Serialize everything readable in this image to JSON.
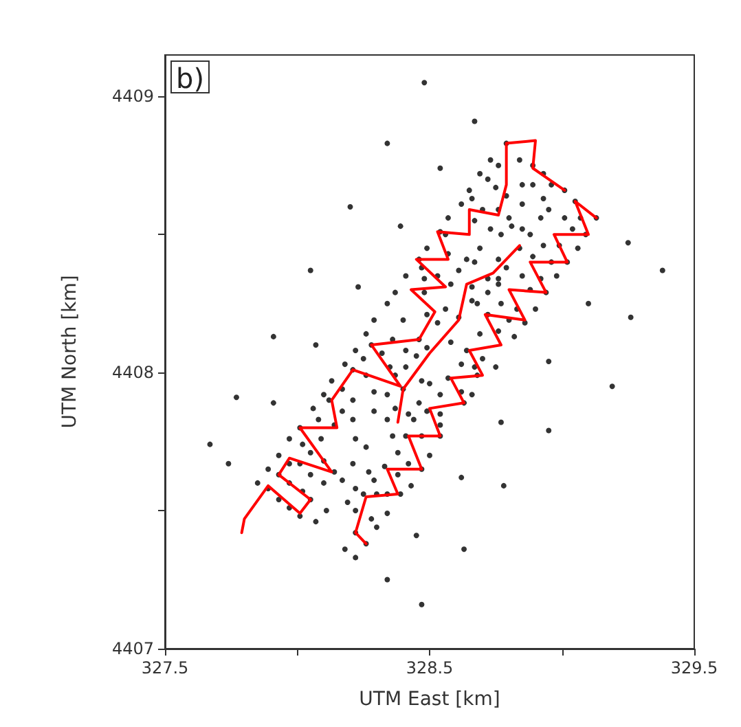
{
  "chart_data": {
    "type": "scatter",
    "xlabel": "UTM East [km]",
    "ylabel": "UTM North [km]",
    "annotations": [
      "b)"
    ],
    "xlim": [
      327.5,
      329.5
    ],
    "xticks": [
      327.5,
      {
        "value": 328,
        "label": null
      },
      328.5,
      {
        "value": 329,
        "label": null
      },
      329.5
    ],
    "ylim": [
      4407,
      4409.15
    ],
    "yticks": [
      4407,
      {
        "value": 4407.5,
        "label": null
      },
      4408,
      {
        "value": 4408.5,
        "label": null
      },
      4409
    ],
    "grid": false,
    "marker": "circle",
    "series": [
      {
        "color": "#000000",
        "x": [
          328.48,
          328.67,
          328.34,
          328.79,
          328.84,
          328.73,
          328.76,
          328.54,
          328.89,
          328.69,
          328.72,
          328.93,
          328.85,
          328.89,
          328.96,
          328.75,
          328.65,
          329.01,
          328.66,
          328.79,
          328.2,
          328.62,
          328.85,
          328.93,
          328.95,
          329.05,
          328.57,
          328.7,
          328.76,
          328.8,
          328.67,
          328.92,
          329.01,
          329.07,
          329.13,
          328.39,
          328.54,
          328.56,
          328.73,
          328.77,
          328.81,
          328.85,
          328.88,
          329.04,
          329.09,
          329.25,
          328.49,
          328.69,
          328.84,
          328.93,
          328.99,
          329.06,
          328.46,
          328.57,
          328.64,
          328.67,
          328.76,
          328.79,
          328.89,
          328.96,
          329.02,
          328.47,
          328.61,
          328.05,
          329.38,
          328.41,
          328.48,
          328.53,
          328.72,
          328.76,
          328.85,
          328.92,
          328.98,
          328.23,
          328.37,
          328.48,
          328.58,
          328.66,
          328.72,
          328.76,
          328.88,
          328.94,
          328.34,
          328.56,
          328.66,
          328.68,
          328.77,
          328.83,
          328.9,
          329.1,
          328.29,
          328.4,
          328.49,
          328.53,
          328.61,
          328.72,
          328.8,
          328.86,
          329.26,
          328.26,
          328.36,
          328.46,
          328.58,
          328.69,
          328.76,
          328.82,
          327.91,
          328.07,
          328.28,
          328.22,
          328.32,
          328.41,
          328.45,
          328.49,
          328.64,
          328.7,
          328.18,
          328.25,
          328.35,
          328.41,
          328.62,
          328.67,
          328.75,
          328.95,
          328.21,
          328.13,
          328.26,
          328.37,
          328.47,
          328.5,
          328.57,
          328.68,
          329.19,
          328.1,
          328.17,
          328.29,
          328.34,
          328.4,
          328.54,
          328.62,
          328.66,
          327.77,
          327.91,
          328.12,
          328.21,
          328.46,
          328.63,
          328.06,
          328.17,
          328.29,
          328.37,
          328.42,
          328.49,
          328.54,
          328.08,
          328.21,
          328.34,
          328.44,
          328.01,
          328.14,
          328.54,
          328.77,
          328.95,
          327.97,
          328.09,
          328.22,
          328.02,
          328.26,
          328.36,
          328.41,
          328.47,
          328.54,
          327.67,
          327.93,
          328.05,
          328.38,
          328.5,
          327.74,
          327.97,
          328.01,
          328.21,
          328.42,
          327.89,
          328.14,
          328.27,
          328.33,
          328.47,
          328.1,
          327.85,
          327.93,
          328.05,
          328.1,
          328.17,
          328.22,
          328.29,
          328.38,
          328.43,
          328.62,
          328.78,
          327.89,
          327.97,
          328.02,
          328.25,
          328.3,
          328.34,
          328.39,
          327.93,
          328.05,
          328.19,
          327.97,
          328.22,
          328.11,
          328.01,
          328.34,
          328.28,
          328.07,
          328.3,
          328.22,
          328.26,
          328.45,
          328.18,
          328.22,
          328.63,
          328.34,
          328.47
        ],
        "values": [
          4409.05,
          4408.91,
          4408.83,
          4408.83,
          4408.77,
          4408.77,
          4408.75,
          4408.74,
          4408.75,
          4408.72,
          4408.7,
          4408.72,
          4408.68,
          4408.68,
          4408.68,
          4408.67,
          4408.66,
          4408.66,
          4408.63,
          4408.64,
          4408.6,
          4408.61,
          4408.61,
          4408.63,
          4408.59,
          4408.62,
          4408.56,
          4408.59,
          4408.59,
          4408.56,
          4408.55,
          4408.56,
          4408.56,
          4408.56,
          4408.56,
          4408.53,
          4408.51,
          4408.5,
          4408.52,
          4408.5,
          4408.53,
          4408.52,
          4408.5,
          4408.52,
          4408.5,
          4408.47,
          4408.45,
          4408.45,
          4408.45,
          4408.46,
          4408.46,
          4408.45,
          4408.41,
          4408.43,
          4408.41,
          4408.4,
          4408.41,
          4408.38,
          4408.42,
          4408.4,
          4408.4,
          4408.38,
          4408.37,
          4408.37,
          4408.37,
          4408.35,
          4408.34,
          4408.35,
          4408.34,
          4408.34,
          4408.35,
          4408.34,
          4408.35,
          4408.31,
          4408.29,
          4408.29,
          4408.32,
          4408.31,
          4408.29,
          4408.32,
          4408.3,
          4408.29,
          4408.25,
          4408.23,
          4408.26,
          4408.25,
          4408.25,
          4408.23,
          4408.23,
          4408.25,
          4408.19,
          4408.19,
          4408.21,
          4408.18,
          4408.2,
          4408.21,
          4408.19,
          4408.18,
          4408.2,
          4408.14,
          4408.12,
          4408.12,
          4408.11,
          4408.14,
          4408.15,
          4408.13,
          4408.13,
          4408.1,
          4408.1,
          4408.08,
          4408.07,
          4408.08,
          4408.06,
          4408.09,
          4408.08,
          4408.05,
          4408.03,
          4408.05,
          4408.02,
          4408.02,
          4408.03,
          4408.02,
          4408.02,
          4408.04,
          4408.01,
          4407.97,
          4407.99,
          4407.99,
          4407.97,
          4407.96,
          4407.98,
          4407.99,
          4407.95,
          4407.92,
          4407.94,
          4407.93,
          4407.92,
          4407.94,
          4407.92,
          4407.93,
          4407.92,
          4407.91,
          4407.89,
          4407.9,
          4407.9,
          4407.89,
          4407.89,
          4407.87,
          4407.86,
          4407.86,
          4407.87,
          4407.85,
          4407.86,
          4407.85,
          4407.83,
          4407.83,
          4407.83,
          4407.83,
          4407.8,
          4407.81,
          4407.81,
          4407.82,
          4407.79,
          4407.76,
          4407.76,
          4407.76,
          4407.74,
          4407.73,
          4407.77,
          4407.77,
          4407.77,
          4407.77,
          4407.74,
          4407.7,
          4407.71,
          4407.71,
          4407.7,
          4407.67,
          4407.67,
          4407.67,
          4407.67,
          4407.67,
          4407.65,
          4407.64,
          4407.64,
          4407.66,
          4407.65,
          4407.68,
          4407.6,
          4407.63,
          4407.63,
          4407.6,
          4407.61,
          4407.58,
          4407.61,
          4407.63,
          4407.59,
          4407.62,
          4407.59,
          4407.58,
          4407.6,
          4407.57,
          4407.56,
          4407.56,
          4407.56,
          4407.56,
          4407.54,
          4407.54,
          4407.53,
          4407.51,
          4407.5,
          4407.5,
          4407.48,
          4407.49,
          4407.47,
          4407.46,
          4407.44,
          4407.42,
          4407.38,
          4407.41,
          4407.36,
          4407.33,
          4407.36,
          4407.25,
          4407.16
        ]
      },
      {
        "type": "line",
        "marker": "none",
        "color": "#ff0000",
        "x": [
          327.79,
          327.8,
          327.89,
          328.01,
          328.05,
          327.93,
          327.97,
          328.13,
          328.01,
          328.15,
          328.13,
          328.21,
          328.39,
          328.28,
          328.46,
          328.52,
          328.43,
          328.56,
          328.45,
          328.57,
          328.53,
          328.65,
          328.65,
          328.76,
          328.79,
          328.79,
          328.9,
          328.89,
          329.01
        ],
        "values": [
          4407.42,
          4407.47,
          4407.59,
          4407.49,
          4407.54,
          4407.63,
          4407.69,
          4407.64,
          4407.8,
          4407.8,
          4407.9,
          4408.01,
          4407.95,
          4408.1,
          4408.12,
          4408.22,
          4408.3,
          4408.31,
          4408.41,
          4408.41,
          4408.51,
          4408.5,
          4408.59,
          4408.57,
          4408.68,
          4408.83,
          4408.84,
          4408.74,
          4408.66
        ]
      },
      {
        "type": "line",
        "marker": "none",
        "color": "#ff0000",
        "x": [
          328.26,
          328.22,
          328.26,
          328.38,
          328.34,
          328.47,
          328.42,
          328.54,
          328.5,
          328.63,
          328.58,
          328.7,
          328.65,
          328.77,
          328.71,
          328.86,
          328.8,
          328.94,
          328.88,
          329.02,
          328.97,
          329.1,
          329.05,
          329.13
        ],
        "values": [
          4407.38,
          4407.42,
          4407.55,
          4407.56,
          4407.65,
          4407.65,
          4407.77,
          4407.77,
          4407.87,
          4407.89,
          4407.98,
          4407.99,
          4408.08,
          4408.1,
          4408.21,
          4408.19,
          4408.3,
          4408.29,
          4408.4,
          4408.4,
          4408.5,
          4408.5,
          4408.62,
          4408.56
        ]
      },
      {
        "type": "line",
        "marker": "none",
        "color": "#ff0000",
        "x": [
          328.38,
          328.4,
          328.5,
          328.61,
          328.64,
          328.74,
          328.84
        ],
        "values": [
          4407.82,
          4407.94,
          4408.07,
          4408.19,
          4408.32,
          4408.36,
          4408.46
        ]
      }
    ]
  }
}
